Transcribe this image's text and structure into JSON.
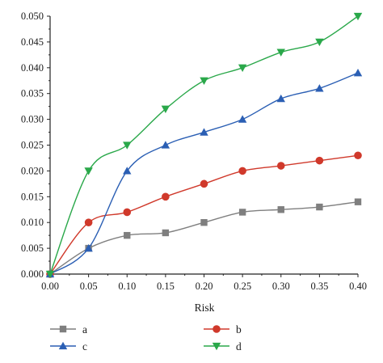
{
  "chart_data": {
    "type": "line",
    "xlabel": "Risk",
    "ylabel": "",
    "xlim": [
      0,
      0.4
    ],
    "ylim": [
      0,
      0.05
    ],
    "x": [
      0.0,
      0.05,
      0.1,
      0.15,
      0.2,
      0.25,
      0.3,
      0.35,
      0.4
    ],
    "x_tick_labels": [
      "0.00",
      "0.05",
      "0.10",
      "0.15",
      "0.20",
      "0.25",
      "0.30",
      "0.35",
      "0.40"
    ],
    "y_ticks": [
      0.0,
      0.005,
      0.01,
      0.015,
      0.02,
      0.025,
      0.03,
      0.035,
      0.04,
      0.045,
      0.05
    ],
    "y_tick_labels": [
      "0.000",
      "0.005",
      "0.010",
      "0.015",
      "0.020",
      "0.025",
      "0.030",
      "0.035",
      "0.040",
      "0.045",
      "0.050"
    ],
    "grid": false,
    "legend_position": "bottom",
    "series": [
      {
        "name": "a",
        "marker": "square",
        "color": "#7f7f7f",
        "values": [
          0.0,
          0.005,
          0.0075,
          0.008,
          0.01,
          0.012,
          0.0125,
          0.013,
          0.014
        ]
      },
      {
        "name": "b",
        "marker": "circle",
        "color": "#d0392b",
        "values": [
          0.0,
          0.01,
          0.012,
          0.015,
          0.0175,
          0.02,
          0.021,
          0.022,
          0.023
        ]
      },
      {
        "name": "c",
        "marker": "triangle-up",
        "color": "#2b5fb4",
        "values": [
          0.0,
          0.005,
          0.02,
          0.025,
          0.0275,
          0.03,
          0.034,
          0.036,
          0.039
        ]
      },
      {
        "name": "d",
        "marker": "triangle-down",
        "color": "#2aa84a",
        "values": [
          0.0,
          0.02,
          0.025,
          0.032,
          0.0375,
          0.04,
          0.043,
          0.045,
          0.05
        ]
      }
    ]
  }
}
